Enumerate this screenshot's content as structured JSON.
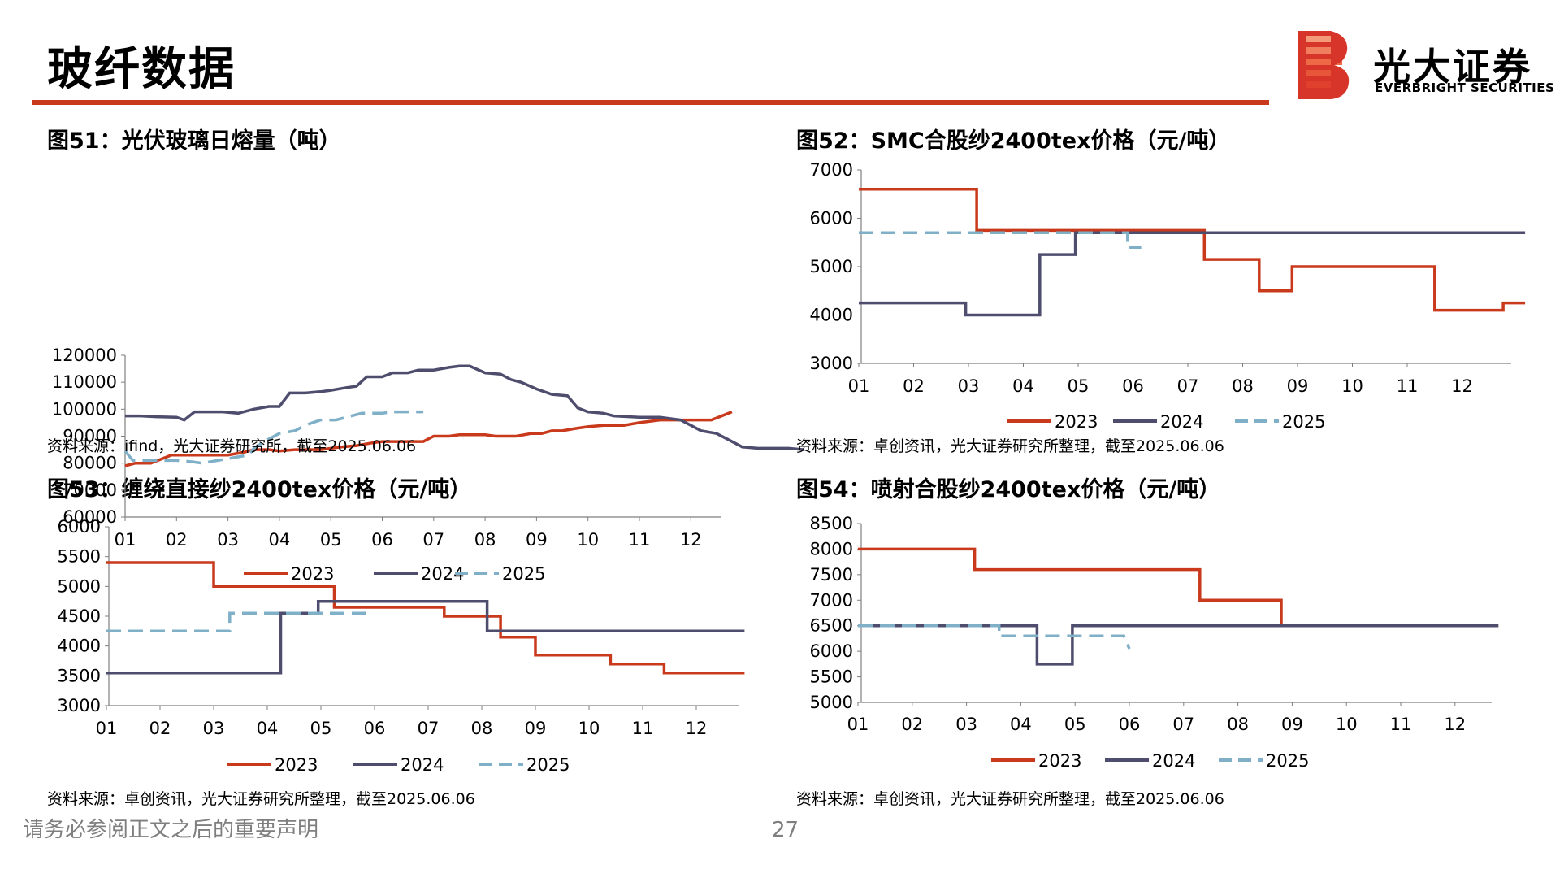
{
  "header": {
    "title": "玻纤数据",
    "brand_cn": "光大证券",
    "brand_en": "EVERBRIGHT SECURITIES"
  },
  "colors": {
    "accent": "#c9391b",
    "s2023": "#c9391b",
    "s2024": "#4e4d6e",
    "s2025": "#7fb0c8"
  },
  "footer": {
    "disclaimer": "请务必参阅正文之后的重要声明",
    "page": "27"
  },
  "figures": [
    {
      "title": "图51：光伏玻璃日熔量（吨）",
      "source": "资料来源：ifind，光大证券研究所，截至2025.06.06"
    },
    {
      "title": "图52：SMC合股纱2400tex价格（元/吨）",
      "source": "资料来源：卓创资讯，光大证券研究所整理，截至2025.06.06"
    },
    {
      "title": "图53：缠绕直接纱2400tex价格（元/吨）",
      "source": "资料来源：卓创资讯，光大证券研究所整理，截至2025.06.06"
    },
    {
      "title": "图54：喷射合股纱2400tex价格（元/吨）",
      "source": "资料来源：卓创资讯，光大证券研究所整理，截至2025.06.06"
    }
  ],
  "chart_data": [
    {
      "type": "line",
      "categories": [
        "01",
        "02",
        "03",
        "04",
        "05",
        "06",
        "07",
        "08",
        "09",
        "10",
        "11",
        "12"
      ],
      "ylim": [
        60000,
        120000
      ],
      "yticks": [
        60000,
        70000,
        80000,
        90000,
        100000,
        110000,
        120000
      ],
      "ytick_labels": [
        "60000",
        "70000",
        "80000",
        "90000",
        "100000",
        "110000",
        "120000"
      ],
      "legend_position": "bottom",
      "series": [
        {
          "name": "2023",
          "step": false,
          "points": [
            [
              0,
              79000
            ],
            [
              0.2,
              80000
            ],
            [
              0.5,
              80000
            ],
            [
              0.9,
              83000
            ],
            [
              1.5,
              83000
            ],
            [
              2.0,
              83000
            ],
            [
              2.3,
              84000
            ],
            [
              2.5,
              85000
            ],
            [
              2.8,
              85000
            ],
            [
              3.0,
              84500
            ],
            [
              3.3,
              85000
            ],
            [
              3.8,
              85000
            ],
            [
              4.2,
              86000
            ],
            [
              4.5,
              86500
            ],
            [
              4.8,
              87500
            ],
            [
              5.0,
              88000
            ],
            [
              5.5,
              88000
            ],
            [
              5.8,
              88000
            ],
            [
              6.0,
              90000
            ],
            [
              6.3,
              90000
            ],
            [
              6.5,
              90500
            ],
            [
              7.0,
              90500
            ],
            [
              7.2,
              90000
            ],
            [
              7.6,
              90000
            ],
            [
              7.9,
              91000
            ],
            [
              8.1,
              91000
            ],
            [
              8.3,
              92000
            ],
            [
              8.5,
              92000
            ],
            [
              8.8,
              93000
            ],
            [
              9.0,
              93500
            ],
            [
              9.3,
              94000
            ],
            [
              9.7,
              94000
            ],
            [
              10.0,
              95000
            ],
            [
              10.4,
              96000
            ],
            [
              10.8,
              96000
            ],
            [
              11.2,
              96000
            ],
            [
              11.4,
              96000
            ],
            [
              11.6,
              97500
            ],
            [
              11.8,
              99000
            ]
          ]
        },
        {
          "name": "2024",
          "step": false,
          "points": [
            [
              0,
              97500
            ],
            [
              0.3,
              97500
            ],
            [
              0.6,
              97200
            ],
            [
              1.0,
              97000
            ],
            [
              1.15,
              96000
            ],
            [
              1.35,
              99000
            ],
            [
              1.6,
              99000
            ],
            [
              1.9,
              99000
            ],
            [
              2.2,
              98500
            ],
            [
              2.5,
              100000
            ],
            [
              2.8,
              101000
            ],
            [
              3.0,
              101000
            ],
            [
              3.2,
              106000
            ],
            [
              3.5,
              106000
            ],
            [
              3.8,
              106500
            ],
            [
              4.0,
              107000
            ],
            [
              4.3,
              108000
            ],
            [
              4.5,
              108500
            ],
            [
              4.7,
              112000
            ],
            [
              5.0,
              112000
            ],
            [
              5.2,
              113500
            ],
            [
              5.5,
              113500
            ],
            [
              5.7,
              114500
            ],
            [
              6.0,
              114500
            ],
            [
              6.3,
              115500
            ],
            [
              6.5,
              116000
            ],
            [
              6.7,
              116000
            ],
            [
              7.0,
              113500
            ],
            [
              7.3,
              113000
            ],
            [
              7.5,
              111000
            ],
            [
              7.7,
              110000
            ],
            [
              8.0,
              107500
            ],
            [
              8.3,
              105500
            ],
            [
              8.6,
              105000
            ],
            [
              8.8,
              100500
            ],
            [
              9.0,
              99000
            ],
            [
              9.3,
              98500
            ],
            [
              9.5,
              97500
            ],
            [
              10.0,
              97000
            ],
            [
              10.4,
              97000
            ],
            [
              10.8,
              96000
            ],
            [
              11.0,
              94000
            ],
            [
              11.2,
              92000
            ],
            [
              11.5,
              91000
            ],
            [
              11.8,
              88000
            ],
            [
              12.0,
              86000
            ],
            [
              12.3,
              85500
            ],
            [
              12.6,
              85500
            ],
            [
              12.9,
              85500
            ],
            [
              13.2,
              85000
            ]
          ]
        },
        {
          "name": "2025",
          "step": false,
          "points": [
            [
              0,
              84500
            ],
            [
              0.15,
              81000
            ],
            [
              0.5,
              81000
            ],
            [
              1.0,
              81000
            ],
            [
              1.3,
              80500
            ],
            [
              1.5,
              80000
            ],
            [
              1.8,
              81000
            ],
            [
              2.1,
              82000
            ],
            [
              2.4,
              83000
            ],
            [
              2.5,
              85500
            ],
            [
              2.8,
              89000
            ],
            [
              3.0,
              91000
            ],
            [
              3.3,
              92000
            ],
            [
              3.5,
              94000
            ],
            [
              3.8,
              96000
            ],
            [
              4.1,
              96000
            ],
            [
              4.3,
              97000
            ],
            [
              4.6,
              98500
            ],
            [
              5.0,
              98500
            ],
            [
              5.2,
              99000
            ],
            [
              5.6,
              99000
            ],
            [
              5.8,
              99000
            ]
          ]
        }
      ]
    },
    {
      "type": "line",
      "categories": [
        "01",
        "02",
        "03",
        "04",
        "05",
        "06",
        "07",
        "08",
        "09",
        "10",
        "11",
        "12"
      ],
      "ylim": [
        3000,
        7000
      ],
      "yticks": [
        3000,
        4000,
        5000,
        6000,
        7000
      ],
      "ytick_labels": [
        "3000",
        "4000",
        "5000",
        "6000",
        "7000"
      ],
      "legend_position": "bottom",
      "series": [
        {
          "name": "2023",
          "step": true,
          "points": [
            [
              0,
              6600
            ],
            [
              2.15,
              6600
            ],
            [
              2.15,
              5750
            ],
            [
              6.3,
              5750
            ],
            [
              6.3,
              5150
            ],
            [
              7.3,
              5150
            ],
            [
              7.3,
              4500
            ],
            [
              7.9,
              4500
            ],
            [
              7.9,
              5000
            ],
            [
              10.5,
              5000
            ],
            [
              10.5,
              4100
            ],
            [
              11.75,
              4100
            ],
            [
              11.75,
              4250
            ],
            [
              12.15,
              4250
            ]
          ]
        },
        {
          "name": "2024",
          "step": true,
          "points": [
            [
              0,
              4250
            ],
            [
              1.95,
              4250
            ],
            [
              1.95,
              4000
            ],
            [
              3.3,
              4000
            ],
            [
              3.3,
              5250
            ],
            [
              3.95,
              5250
            ],
            [
              3.95,
              5700
            ],
            [
              12.15,
              5700
            ]
          ]
        },
        {
          "name": "2025",
          "step": true,
          "points": [
            [
              0,
              5700
            ],
            [
              4.9,
              5700
            ],
            [
              4.9,
              5400
            ],
            [
              5.15,
              5400
            ]
          ]
        }
      ]
    },
    {
      "type": "line",
      "categories": [
        "01",
        "02",
        "03",
        "04",
        "05",
        "06",
        "07",
        "08",
        "09",
        "10",
        "11",
        "12"
      ],
      "ylim": [
        3000,
        6000
      ],
      "yticks": [
        3000,
        3500,
        4000,
        4500,
        5000,
        5500,
        6000
      ],
      "ytick_labels": [
        "3000",
        "3500",
        "4000",
        "4500",
        "5000",
        "5500",
        "6000"
      ],
      "legend_position": "bottom",
      "series": [
        {
          "name": "2023",
          "step": true,
          "points": [
            [
              0,
              5400
            ],
            [
              2.0,
              5400
            ],
            [
              2.0,
              5000
            ],
            [
              4.25,
              5000
            ],
            [
              4.25,
              4650
            ],
            [
              6.3,
              4650
            ],
            [
              6.3,
              4500
            ],
            [
              7.35,
              4500
            ],
            [
              7.35,
              4150
            ],
            [
              8.0,
              4150
            ],
            [
              8.0,
              3850
            ],
            [
              9.4,
              3850
            ],
            [
              9.4,
              3700
            ],
            [
              10.4,
              3700
            ],
            [
              10.4,
              3550
            ],
            [
              11.9,
              3550
            ]
          ]
        },
        {
          "name": "2024",
          "step": true,
          "points": [
            [
              0,
              3550
            ],
            [
              3.25,
              3550
            ],
            [
              3.25,
              4550
            ],
            [
              3.95,
              4550
            ],
            [
              3.95,
              4750
            ],
            [
              7.1,
              4750
            ],
            [
              7.1,
              4250
            ],
            [
              11.9,
              4250
            ]
          ]
        },
        {
          "name": "2025",
          "step": true,
          "points": [
            [
              0,
              4250
            ],
            [
              2.3,
              4250
            ],
            [
              2.3,
              4550
            ],
            [
              4.95,
              4550
            ]
          ]
        }
      ]
    },
    {
      "type": "line",
      "categories": [
        "01",
        "02",
        "03",
        "04",
        "05",
        "06",
        "07",
        "08",
        "09",
        "10",
        "11",
        "12"
      ],
      "ylim": [
        5000,
        8500
      ],
      "yticks": [
        5000,
        5500,
        6000,
        6500,
        7000,
        7500,
        8000,
        8500
      ],
      "ytick_labels": [
        "5000",
        "5500",
        "6000",
        "6500",
        "7000",
        "7500",
        "8000",
        "8500"
      ],
      "legend_position": "bottom",
      "series": [
        {
          "name": "2023",
          "step": true,
          "points": [
            [
              0,
              8000
            ],
            [
              2.15,
              8000
            ],
            [
              2.15,
              7600
            ],
            [
              6.3,
              7600
            ],
            [
              6.3,
              7000
            ],
            [
              7.8,
              7000
            ],
            [
              7.8,
              6500
            ],
            [
              11.8,
              6500
            ]
          ]
        },
        {
          "name": "2024",
          "step": true,
          "points": [
            [
              0,
              6500
            ],
            [
              3.3,
              6500
            ],
            [
              3.3,
              5750
            ],
            [
              3.95,
              5750
            ],
            [
              3.95,
              6500
            ],
            [
              11.8,
              6500
            ]
          ]
        },
        {
          "name": "2025",
          "step": true,
          "points": [
            [
              0,
              6500
            ],
            [
              2.6,
              6500
            ],
            [
              2.6,
              6300
            ],
            [
              4.9,
              6300
            ],
            [
              5.0,
              6050
            ]
          ]
        }
      ]
    }
  ]
}
